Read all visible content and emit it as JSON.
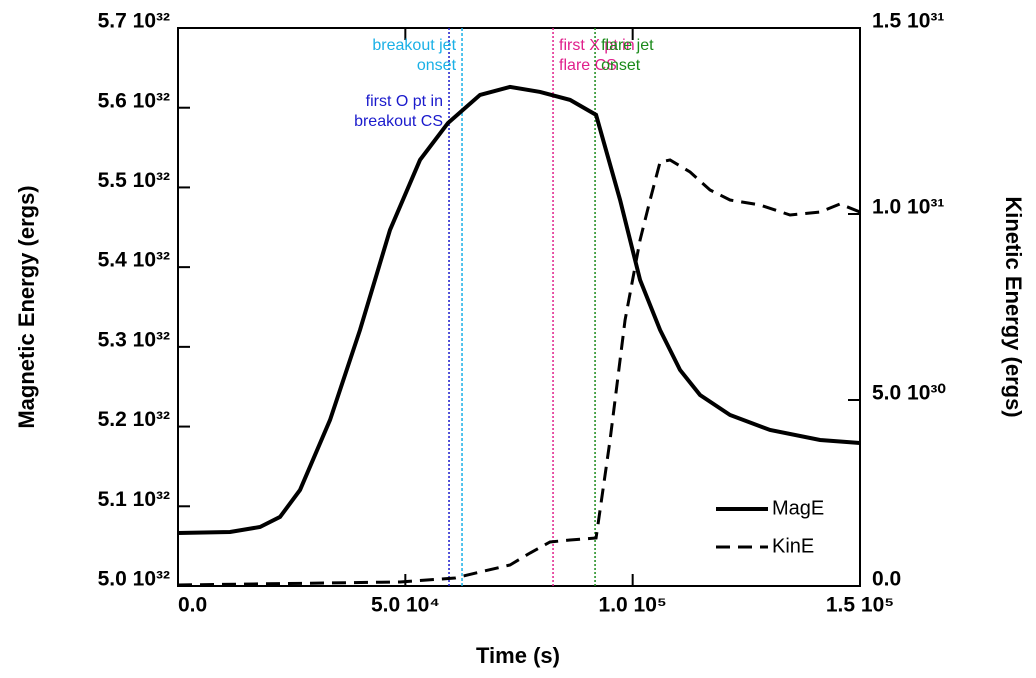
{
  "chart_data": {
    "type": "line",
    "xlabel": "Time (s)",
    "ylabel": "Magnetic Energy (ergs)",
    "y2label": "Kinetic Energy (ergs)",
    "xlim": [
      0,
      150000
    ],
    "xticks": [
      {
        "value": 0,
        "label": "0.0"
      },
      {
        "value": 50000,
        "label": "5.0 10⁴"
      },
      {
        "value": 100000,
        "label": "1.0 10⁵"
      },
      {
        "value": 150000,
        "label": "1.5 10⁵"
      }
    ],
    "ylim": [
      5e+32,
      5.7e+32
    ],
    "yticks": [
      {
        "value": 5e+32,
        "label": "5.0 10³²"
      },
      {
        "value": 5.1e+32,
        "label": "5.1 10³²"
      },
      {
        "value": 5.2e+32,
        "label": "5.2 10³²"
      },
      {
        "value": 5.3e+32,
        "label": "5.3 10³²"
      },
      {
        "value": 5.4e+32,
        "label": "5.4 10³²"
      },
      {
        "value": 5.5e+32,
        "label": "5.5 10³²"
      },
      {
        "value": 5.6e+32,
        "label": "5.6 10³²"
      },
      {
        "value": 5.7e+32,
        "label": "5.7 10³²"
      }
    ],
    "y2lim": [
      0,
      1.5e+31
    ],
    "y2ticks": [
      {
        "value": 0,
        "label": "0.0"
      },
      {
        "value": 5e+30,
        "label": "5.0 10³⁰"
      },
      {
        "value": 1e+31,
        "label": "1.0 10³¹"
      },
      {
        "value": 1.5e+31,
        "label": "1.5 10³¹"
      }
    ],
    "legend": "lower right",
    "series": [
      {
        "name": "MagE",
        "color": "#000000",
        "dash": false,
        "x": [
          0,
          11440,
          18040,
          22440,
          26840,
          33440,
          40030,
          46630,
          53230,
          59390,
          66430,
          73030,
          79630,
          86230,
          91950,
          97230,
          101630,
          106030,
          110420,
          114820,
          121420,
          130220,
          141220,
          150000
        ],
        "values": [
          5.0665e+32,
          5.0678e+32,
          5.074e+32,
          5.0866e+32,
          5.1205e+32,
          5.2083e+32,
          5.3212e+32,
          5.4467e+32,
          5.5345e+32,
          5.5809e+32,
          5.6161e+32,
          5.6261e+32,
          5.6198e+32,
          5.6098e+32,
          5.591e+32,
          5.4843e+32,
          5.3839e+32,
          5.3212e+32,
          5.271e+32,
          5.2396e+32,
          5.2145e+32,
          5.1957e+32,
          5.1832e+32,
          5.1794e+32
        ]
      },
      {
        "name": "KinE",
        "color": "#000000",
        "dash": true,
        "axis": "y2",
        "x": [
          0,
          48830,
          60930,
          66430,
          73030,
          77430,
          81830,
          86230,
          91950,
          95030,
          98330,
          101630,
          103830,
          106030,
          108220,
          112620,
          117020,
          121420,
          128020,
          134620,
          141220,
          145620,
          150000
        ],
        "values": [
          2.7e+28,
          1.08e+29,
          2.15e+29,
          3.76e+29,
          5.65e+29,
          8.87e+29,
          1.183e+30,
          1.237e+30,
          1.29e+30,
          3.925e+30,
          7.151e+30,
          9.3e+30,
          1.0376e+31,
          1.1398e+31,
          1.1452e+31,
          1.1129e+31,
          1.0645e+31,
          1.0376e+31,
          1.0242e+31,
          9.973e+30,
          1.0054e+31,
          1.0269e+31,
          1.0054e+31
        ]
      }
    ],
    "markers": [
      {
        "x": 59610,
        "color": "#1a1acc",
        "dash": "2,2",
        "side": "left",
        "row": 1,
        "label": [
          "first O pt in",
          "breakout CS"
        ]
      },
      {
        "x": 62470,
        "color": "#1ab0e6",
        "dash": "3,2",
        "side": "left",
        "row": 0,
        "label": [
          "breakout jet",
          "onset"
        ]
      },
      {
        "x": 82490,
        "color": "#e0208c",
        "dash": "2,2",
        "side": "right",
        "row": 0,
        "label": [
          "first X pt in",
          "flare CS"
        ]
      },
      {
        "x": 91730,
        "color": "#1a8a1a",
        "dash": "2,2",
        "side": "right",
        "row": 0,
        "label": [
          "flare jet",
          "onset"
        ]
      }
    ]
  }
}
